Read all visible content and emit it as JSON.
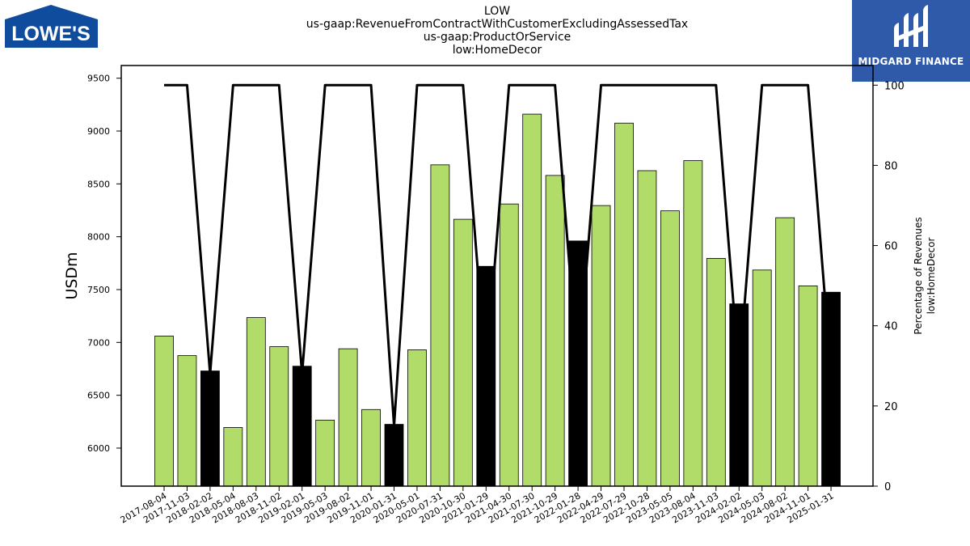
{
  "header": {
    "title_lines": [
      "LOW",
      "us-gaap:RevenueFromContractWithCustomerExcludingAssessedTax",
      "us-gaap:ProductOrService",
      "low:HomeDecor"
    ]
  },
  "logos": {
    "left_text": "LOWE'S",
    "right_text": "MIDGARD FINANCE"
  },
  "colors": {
    "bar_fill": "#b2dc6a",
    "bar_highlight": "#000000",
    "line": "#000000",
    "brand_blue": "#2f59a9",
    "lowes_blue": "#0f4c9e"
  },
  "chart_data": {
    "type": "bar",
    "ylabel": "USDm",
    "y2label": [
      "Percentage of Revenues",
      "low:HomeDecor"
    ],
    "ylim": [
      5640,
      9620
    ],
    "y2lim": [
      0,
      104.9
    ],
    "yticks": [
      6000,
      6500,
      7000,
      7500,
      8000,
      8500,
      9000,
      9500
    ],
    "y2ticks": [
      0,
      20,
      40,
      60,
      80,
      100
    ],
    "grid": false,
    "categories": [
      "2017-08-04",
      "2017-11-03",
      "2018-02-02",
      "2018-05-04",
      "2018-08-03",
      "2018-11-02",
      "2019-02-01",
      "2019-05-03",
      "2019-08-02",
      "2019-11-01",
      "2020-01-31",
      "2020-05-01",
      "2020-07-31",
      "2020-10-30",
      "2021-01-29",
      "2021-04-30",
      "2021-07-30",
      "2021-10-29",
      "2022-01-28",
      "2022-04-29",
      "2022-07-29",
      "2022-10-28",
      "2023-05-05",
      "2023-08-04",
      "2023-11-03",
      "2024-02-02",
      "2024-05-03",
      "2024-08-02",
      "2024-11-01",
      "2025-01-31"
    ],
    "series": [
      {
        "values": [
          7060,
          6875,
          6730,
          6195,
          7235,
          6960,
          6775,
          6265,
          6940,
          6365,
          6225,
          6930,
          8680,
          8165,
          7720,
          8310,
          9160,
          8580,
          7960,
          8295,
          9075,
          8625,
          8245,
          8720,
          7795,
          7365,
          7685,
          8180,
          7535,
          7475
        ],
        "highlighted": [
          false,
          false,
          true,
          false,
          false,
          false,
          true,
          false,
          false,
          false,
          true,
          false,
          false,
          false,
          true,
          false,
          false,
          false,
          true,
          false,
          false,
          false,
          false,
          false,
          false,
          true,
          false,
          false,
          false,
          true
        ]
      },
      {
        "axis": "right",
        "values": [
          100,
          100,
          28,
          100,
          100,
          100,
          28,
          100,
          100,
          100,
          15,
          100,
          100,
          100,
          28,
          100,
          100,
          100,
          28,
          100,
          100,
          100,
          100,
          100,
          100,
          28,
          100,
          100,
          100,
          28
        ]
      }
    ]
  }
}
